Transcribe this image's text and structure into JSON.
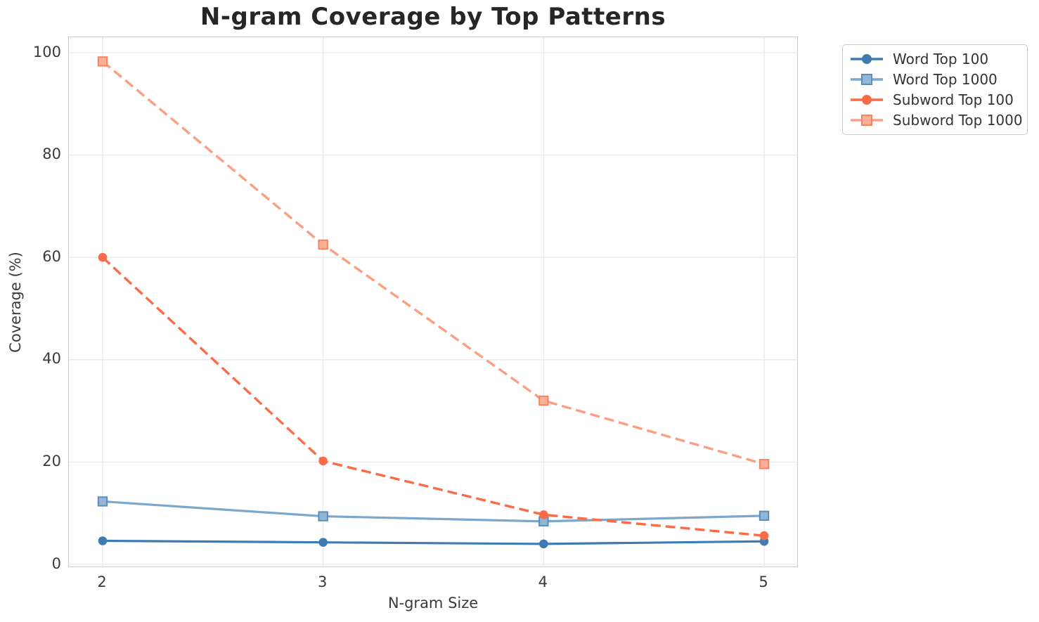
{
  "chart": {
    "title": "N-gram Coverage by Top Patterns",
    "xlabel": "N-gram Size",
    "ylabel": "Coverage (%)"
  },
  "chart_data": {
    "type": "line",
    "title": "N-gram Coverage by Top Patterns",
    "xlabel": "N-gram Size",
    "ylabel": "Coverage (%)",
    "x": [
      2,
      3,
      4,
      5
    ],
    "xticks": [
      "2",
      "3",
      "4",
      "5"
    ],
    "yticks": [
      "0",
      "20",
      "40",
      "60",
      "80",
      "100"
    ],
    "ytick_values": [
      0,
      20,
      40,
      60,
      80,
      100
    ],
    "ylim": [
      0,
      103
    ],
    "grid": true,
    "legend_position": "outside-upper-right",
    "series": [
      {
        "name": "Word Top 100",
        "values": [
          4.6,
          4.3,
          4.0,
          4.5
        ],
        "color": "#3e7cb1",
        "line_style": "solid",
        "marker": "circle",
        "marker_edge": "#3e7cb1",
        "marker_fill": "#3e7cb1"
      },
      {
        "name": "Word Top 1000",
        "values": [
          12.3,
          9.4,
          8.4,
          9.5
        ],
        "color": "#7ba7cc",
        "line_style": "solid",
        "marker": "square",
        "marker_edge": "#5b8cba",
        "marker_fill": "#92b6d6"
      },
      {
        "name": "Subword Top 100",
        "values": [
          60.0,
          20.2,
          9.7,
          5.6
        ],
        "color": "#fa6c48",
        "line_style": "dashed",
        "marker": "circle",
        "marker_edge": "#fa6c48",
        "marker_fill": "#fa6c48"
      },
      {
        "name": "Subword Top 1000",
        "values": [
          98.3,
          62.5,
          32.0,
          19.6
        ],
        "color": "#fb9f80",
        "line_style": "dashed",
        "marker": "square",
        "marker_edge": "#f8815e",
        "marker_fill": "#fcb096"
      }
    ],
    "style": {
      "grid_color": "#e9e9e9",
      "spine_color": "#cbcbcb",
      "background": "#ffffff",
      "title_color": "#262626",
      "text_color": "#3a3a3a"
    }
  }
}
